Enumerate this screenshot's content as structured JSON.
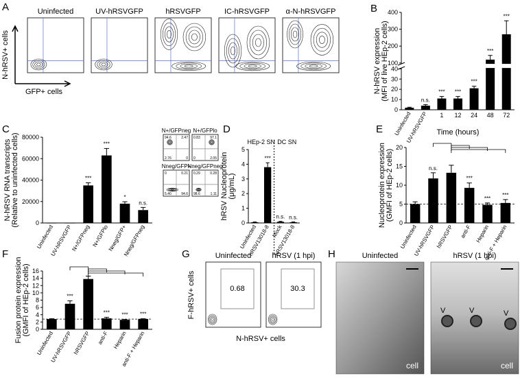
{
  "chart_data": [
    {
      "type": "bar",
      "panel": "B",
      "y_label": [
        "N-hRSV expression",
        "(MFI of live HEp-2 cells)"
      ],
      "x_label": "Time (hours)",
      "categories": [
        "Uninfected",
        "UV-hRSVGFP",
        "1",
        "12",
        "24",
        "48",
        "72"
      ],
      "values": [
        2,
        4,
        11,
        11,
        21,
        120,
        270
      ],
      "errors": [
        0.5,
        1,
        2,
        2,
        2,
        25,
        80
      ],
      "significance": [
        null,
        "n.s.",
        "***",
        "***",
        "***",
        "***",
        "***"
      ],
      "ylim": [
        0,
        400
      ],
      "axis_break": [
        40,
        100
      ],
      "yticks": [
        0,
        10,
        20,
        30,
        40,
        100,
        200,
        300,
        400
      ],
      "color": "#000000"
    },
    {
      "type": "bar",
      "panel": "C",
      "y_label": [
        "N-hRSV RNA transcripts",
        "(Relative to uninfected cells)"
      ],
      "categories": [
        "Uninfected",
        "UV-hRSVGFP",
        "N+/GFPneg",
        "N+/GFPlo",
        "Nneg/GFP+",
        "Nneg/GFPneg"
      ],
      "values": [
        0,
        0,
        35000,
        63000,
        18000,
        12000
      ],
      "errors": [
        0,
        0,
        2500,
        6500,
        1800,
        2500
      ],
      "significance": [
        null,
        null,
        "***",
        "***",
        "*",
        "n.s."
      ],
      "ylim": [
        0,
        80000
      ],
      "yticks": [
        0,
        20000,
        40000,
        60000,
        80000
      ],
      "color": "#000000"
    },
    {
      "type": "bar",
      "panel": "D",
      "y_label": [
        "hRSV Nucleoprotein",
        "(μg/mL)"
      ],
      "categories": [
        "Uninfected",
        "hRSV13018-8",
        "Mock",
        "hRSV13018-8"
      ],
      "groups": [
        "HEp-2 SN",
        "DC SN"
      ],
      "values": [
        0.05,
        3.8,
        0.08,
        0.05
      ],
      "errors": [
        0.02,
        0.3,
        0.03,
        0.02
      ],
      "significance": [
        null,
        "***",
        "n.s.",
        "n.s."
      ],
      "ylim": [
        0,
        5
      ],
      "yticks": [
        0,
        1,
        2,
        3,
        4,
        5
      ],
      "color": "#000000"
    },
    {
      "type": "bar",
      "panel": "E",
      "y_label": [
        "Nucleoprotein expression",
        "(GMFI of HEp-2 cells)"
      ],
      "categories": [
        "Uninfected",
        "UV-hRSVGFP",
        "hRSVGFP",
        "anti-F",
        "Heparin",
        "anti-F + Heparin"
      ],
      "values": [
        5,
        11.8,
        13.3,
        9.3,
        4.8,
        5.3
      ],
      "errors": [
        0.6,
        1.5,
        2,
        1.3,
        0.5,
        0.9
      ],
      "significance": [
        null,
        "n.s.",
        null,
        "***",
        "***",
        "***"
      ],
      "reference_line": 5,
      "ylim": [
        0,
        20
      ],
      "yticks": [
        0,
        5,
        10,
        15,
        20
      ],
      "color": "#000000"
    },
    {
      "type": "bar",
      "panel": "F",
      "y_label": [
        "Fusion protein expression",
        "(GMFI of HEp-2 cells)"
      ],
      "categories": [
        "Uninfected",
        "UV-hRSVGFP",
        "hRSVGFP",
        "anti-F",
        "Heparin",
        "anti-F + Heparin"
      ],
      "values": [
        2.8,
        7,
        13.8,
        3,
        2.6,
        2.8
      ],
      "errors": [
        0.1,
        0.8,
        0.8,
        0.3,
        0.1,
        0.1
      ],
      "significance": [
        null,
        "***",
        null,
        "***",
        "***",
        "***"
      ],
      "reference_line": 2.8,
      "ylim": [
        0,
        16
      ],
      "yticks": [
        0,
        2,
        4,
        6,
        8,
        10,
        12,
        14,
        16
      ],
      "color": "#000000"
    }
  ],
  "panel_a": {
    "letter": "A",
    "titles": [
      "Uninfected",
      "UV-hRSVGFP",
      "hRSVGFP",
      "IC-hRSVGFP",
      "α-N-hRSVGFP"
    ],
    "y_label": "N-hRSV+ cells",
    "x_label": "GFP+ cells"
  },
  "panel_c_inset": {
    "plots": [
      {
        "title": "N+/GFPneg",
        "quadrants": [
          "94.6",
          "2.47",
          "2.76",
          "0"
        ]
      },
      {
        "title": "N+/GFPlo",
        "quadrants": [
          "0.83",
          "97.1",
          "0",
          "2.05"
        ]
      },
      {
        "title": "Nneg/GFP+",
        "quadrants": [
          "0",
          "0.21",
          "5.40",
          "94.6"
        ]
      },
      {
        "title": "Nneg/GFPneg",
        "quadrants": [
          "0.29",
          "0.28",
          "98.6",
          "1.11"
        ]
      }
    ]
  },
  "panel_g": {
    "letter": "G",
    "titles": [
      "Uninfected",
      "hRSV (1 hpi)"
    ],
    "gates": [
      "0.68",
      "30.3"
    ],
    "y_label": "F-hRSV+ cells",
    "x_label": "N-hRSV+ cells"
  },
  "panel_h": {
    "letter": "H",
    "titles": [
      "Uninfected",
      "hRSV (1 hpi)"
    ],
    "cell_labels": [
      "cell",
      "cell"
    ],
    "virion_labels": [
      "V",
      "V",
      "V"
    ]
  }
}
